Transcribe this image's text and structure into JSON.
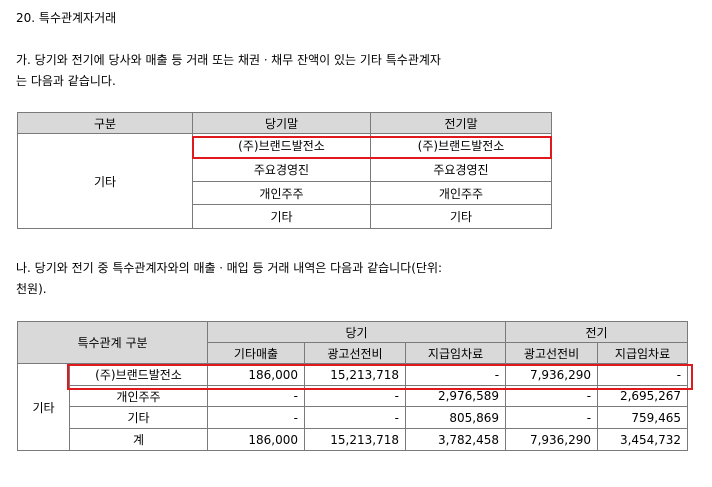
{
  "section_title": "20. 특수관계자거래",
  "para_a": [
    "가. 당기와 전기에 당사와 매출 등 거래 또는 채권ㆍ채무 잔액이 있는 기타 특수관계자",
    "는 다음과 같습니다."
  ],
  "table1": {
    "headers": [
      "구분",
      "당기말",
      "전기말"
    ],
    "group": "기타",
    "rows": [
      [
        "(주)브랜드발전소",
        "(주)브랜드발전소"
      ],
      [
        "주요경영진",
        "주요경영진"
      ],
      [
        "개인주주",
        "개인주주"
      ],
      [
        "기타",
        "기타"
      ]
    ]
  },
  "para_b": [
    "나. 당기와 전기 중 특수관계자와의 매출ㆍ매입 등 거래 내역은 다음과 같습니다(단위:",
    "천원)."
  ],
  "table2": {
    "corner": "특수관계 구분",
    "period_current": "당기",
    "period_prior": "전기",
    "subheaders": [
      "기타매출",
      "광고선전비",
      "지급임차료",
      "광고선전비",
      "지급임차료"
    ],
    "group": "기타",
    "rows": [
      {
        "name": "(주)브랜드발전소",
        "values": [
          "186,000",
          "15,213,718",
          "-",
          "7,936,290",
          "-"
        ]
      },
      {
        "name": "개인주주",
        "values": [
          "-",
          "-",
          "2,976,589",
          "-",
          "2,695,267"
        ]
      },
      {
        "name": "기타",
        "values": [
          "-",
          "-",
          "805,869",
          "-",
          "759,465"
        ]
      },
      {
        "name": "계",
        "values": [
          "186,000",
          "15,213,718",
          "3,782,458",
          "7,936,290",
          "3,454,732"
        ]
      }
    ]
  }
}
